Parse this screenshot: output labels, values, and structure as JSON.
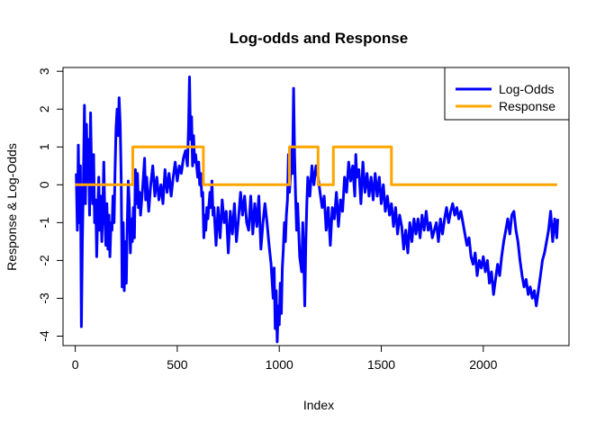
{
  "chart_data": {
    "type": "line",
    "title": "Log-odds and Response",
    "xlabel": "Index",
    "ylabel": "Response & Log-Odds",
    "xlim": [
      -60,
      2420
    ],
    "ylim": [
      -4.25,
      3.1
    ],
    "xticks": [
      0,
      500,
      1000,
      1500,
      2000
    ],
    "yticks": [
      -4,
      -3,
      -2,
      -1,
      0,
      1,
      2,
      3
    ],
    "legend_position": "top-right",
    "legend": [
      "Log-Odds",
      "Response"
    ],
    "grid": false,
    "series": [
      {
        "name": "Log-Odds",
        "color": "#0000ff",
        "points": [
          [
            5,
            0.3
          ],
          [
            10,
            -1.2
          ],
          [
            15,
            1.05
          ],
          [
            20,
            -1.0
          ],
          [
            25,
            0.5
          ],
          [
            30,
            -3.75
          ],
          [
            35,
            -1.5
          ],
          [
            40,
            0.2
          ],
          [
            45,
            2.1
          ],
          [
            50,
            -0.5
          ],
          [
            55,
            1.6
          ],
          [
            60,
            0.0
          ],
          [
            65,
            1.2
          ],
          [
            70,
            -0.8
          ],
          [
            75,
            1.9
          ],
          [
            80,
            0.3
          ],
          [
            85,
            -0.5
          ],
          [
            90,
            0.8
          ],
          [
            95,
            -1.0
          ],
          [
            100,
            -0.4
          ],
          [
            105,
            -1.9
          ],
          [
            110,
            -0.8
          ],
          [
            115,
            0.2
          ],
          [
            120,
            -1.2
          ],
          [
            125,
            -0.3
          ],
          [
            130,
            -1.5
          ],
          [
            135,
            -0.6
          ],
          [
            140,
            0.6
          ],
          [
            145,
            -0.9
          ],
          [
            150,
            -1.6
          ],
          [
            155,
            -0.5
          ],
          [
            160,
            -1.7
          ],
          [
            165,
            -0.8
          ],
          [
            170,
            -1.9
          ],
          [
            175,
            -1.0
          ],
          [
            180,
            -1.2
          ],
          [
            185,
            -0.3
          ],
          [
            190,
            -1.0
          ],
          [
            195,
            0.4
          ],
          [
            200,
            1.5
          ],
          [
            205,
            2.0
          ],
          [
            210,
            1.3
          ],
          [
            215,
            2.3
          ],
          [
            220,
            1.6
          ],
          [
            225,
            0.2
          ],
          [
            230,
            -2.7
          ],
          [
            235,
            -1.0
          ],
          [
            240,
            -2.8
          ],
          [
            245,
            -1.5
          ],
          [
            250,
            -2.6
          ],
          [
            255,
            -1.0
          ],
          [
            260,
            0.1
          ],
          [
            265,
            -0.5
          ],
          [
            270,
            -1.8
          ],
          [
            275,
            -0.9
          ],
          [
            280,
            -1.5
          ],
          [
            285,
            -0.6
          ],
          [
            290,
            -1.4
          ],
          [
            295,
            0.4
          ],
          [
            300,
            -0.5
          ],
          [
            305,
            0.3
          ],
          [
            310,
            -0.6
          ],
          [
            315,
            -0.2
          ],
          [
            320,
            -0.8
          ],
          [
            330,
            -0.1
          ],
          [
            340,
            0.7
          ],
          [
            345,
            -0.4
          ],
          [
            350,
            0.2
          ],
          [
            360,
            -0.7
          ],
          [
            370,
            0.0
          ],
          [
            380,
            0.5
          ],
          [
            390,
            -0.3
          ],
          [
            400,
            0.2
          ],
          [
            410,
            -0.4
          ],
          [
            420,
            0.0
          ],
          [
            430,
            -0.5
          ],
          [
            440,
            0.4
          ],
          [
            450,
            -0.2
          ],
          [
            460,
            0.3
          ],
          [
            470,
            -0.3
          ],
          [
            480,
            0.2
          ],
          [
            490,
            0.6
          ],
          [
            500,
            0.1
          ],
          [
            510,
            0.5
          ],
          [
            520,
            0.3
          ],
          [
            530,
            0.7
          ],
          [
            540,
            0.9
          ],
          [
            550,
            0.5
          ],
          [
            555,
            1.5
          ],
          [
            560,
            2.85
          ],
          [
            565,
            1.2
          ],
          [
            570,
            1.8
          ],
          [
            575,
            0.5
          ],
          [
            580,
            1.3
          ],
          [
            585,
            0.6
          ],
          [
            590,
            0.8
          ],
          [
            600,
            0.2
          ],
          [
            605,
            0.6
          ],
          [
            610,
            0.0
          ],
          [
            615,
            0.3
          ],
          [
            620,
            -0.3
          ],
          [
            625,
            -0.2
          ],
          [
            630,
            -1.4
          ],
          [
            635,
            -0.8
          ],
          [
            640,
            -1.2
          ],
          [
            645,
            -0.6
          ],
          [
            650,
            -0.9
          ],
          [
            660,
            -0.2
          ],
          [
            665,
            -0.6
          ],
          [
            670,
            0.1
          ],
          [
            675,
            -0.8
          ],
          [
            680,
            -0.6
          ],
          [
            690,
            -1.6
          ],
          [
            700,
            -0.6
          ],
          [
            710,
            -1.4
          ],
          [
            720,
            -0.4
          ],
          [
            730,
            -1.0
          ],
          [
            740,
            -0.7
          ],
          [
            750,
            -1.8
          ],
          [
            760,
            -0.7
          ],
          [
            770,
            -1.3
          ],
          [
            780,
            -0.5
          ],
          [
            790,
            -1.5
          ],
          [
            800,
            -0.9
          ],
          [
            810,
            -0.2
          ],
          [
            820,
            -0.8
          ],
          [
            830,
            -0.3
          ],
          [
            840,
            -1.0
          ],
          [
            850,
            -1.2
          ],
          [
            860,
            -0.3
          ],
          [
            870,
            -1.3
          ],
          [
            880,
            -0.5
          ],
          [
            890,
            -1.1
          ],
          [
            900,
            -0.3
          ],
          [
            910,
            -1.7
          ],
          [
            920,
            -1.0
          ],
          [
            930,
            -0.5
          ],
          [
            940,
            -1.0
          ],
          [
            950,
            -1.6
          ],
          [
            960,
            -2.1
          ],
          [
            970,
            -3.0
          ],
          [
            975,
            -2.2
          ],
          [
            980,
            -3.8
          ],
          [
            985,
            -2.8
          ],
          [
            990,
            -4.15
          ],
          [
            995,
            -3.2
          ],
          [
            1000,
            -3.7
          ],
          [
            1005,
            -2.6
          ],
          [
            1010,
            -3.4
          ],
          [
            1015,
            -2.2
          ],
          [
            1020,
            -1.7
          ],
          [
            1025,
            -1.0
          ],
          [
            1030,
            -1.5
          ],
          [
            1035,
            -0.8
          ],
          [
            1040,
            -0.4
          ],
          [
            1045,
            0.8
          ],
          [
            1050,
            -0.2
          ],
          [
            1055,
            0.3
          ],
          [
            1060,
            1.0
          ],
          [
            1065,
            0.3
          ],
          [
            1070,
            2.55
          ],
          [
            1075,
            0.8
          ],
          [
            1080,
            -0.3
          ],
          [
            1085,
            -1.2
          ],
          [
            1090,
            -0.5
          ],
          [
            1100,
            -1.9
          ],
          [
            1110,
            -2.3
          ],
          [
            1115,
            -1.0
          ],
          [
            1120,
            -2.0
          ],
          [
            1125,
            -3.2
          ],
          [
            1130,
            -1.5
          ],
          [
            1135,
            -0.5
          ],
          [
            1140,
            0.2
          ],
          [
            1150,
            -0.3
          ],
          [
            1160,
            0.5
          ],
          [
            1170,
            0.0
          ],
          [
            1180,
            0.5
          ],
          [
            1190,
            0.2
          ],
          [
            1200,
            -0.2
          ],
          [
            1210,
            -0.6
          ],
          [
            1220,
            -0.3
          ],
          [
            1230,
            -1.2
          ],
          [
            1240,
            -0.6
          ],
          [
            1250,
            -1.6
          ],
          [
            1260,
            -0.6
          ],
          [
            1270,
            -0.9
          ],
          [
            1280,
            -0.2
          ],
          [
            1290,
            -1.1
          ],
          [
            1300,
            -0.4
          ],
          [
            1310,
            -0.7
          ],
          [
            1320,
            0.2
          ],
          [
            1330,
            -0.2
          ],
          [
            1340,
            0.6
          ],
          [
            1350,
            0.1
          ],
          [
            1360,
            0.5
          ],
          [
            1370,
            -0.3
          ],
          [
            1375,
            0.8
          ],
          [
            1380,
            0.2
          ],
          [
            1390,
            0.4
          ],
          [
            1400,
            -0.5
          ],
          [
            1410,
            0.6
          ],
          [
            1420,
            -0.2
          ],
          [
            1430,
            0.3
          ],
          [
            1440,
            -0.3
          ],
          [
            1450,
            0.2
          ],
          [
            1460,
            -0.4
          ],
          [
            1470,
            0.3
          ],
          [
            1480,
            -0.3
          ],
          [
            1490,
            0.2
          ],
          [
            1500,
            -0.5
          ],
          [
            1510,
            0.0
          ],
          [
            1520,
            -0.7
          ],
          [
            1530,
            -0.3
          ],
          [
            1540,
            -0.8
          ],
          [
            1550,
            -0.5
          ],
          [
            1560,
            -1.1
          ],
          [
            1570,
            -0.6
          ],
          [
            1580,
            -1.3
          ],
          [
            1590,
            -0.8
          ],
          [
            1600,
            -1.1
          ],
          [
            1610,
            -1.7
          ],
          [
            1620,
            -1.2
          ],
          [
            1630,
            -1.8
          ],
          [
            1640,
            -1.0
          ],
          [
            1650,
            -1.5
          ],
          [
            1660,
            -0.9
          ],
          [
            1670,
            -1.3
          ],
          [
            1680,
            -0.9
          ],
          [
            1690,
            -1.4
          ],
          [
            1700,
            -0.8
          ],
          [
            1710,
            -1.2
          ],
          [
            1720,
            -0.7
          ],
          [
            1730,
            -1.2
          ],
          [
            1740,
            -1.0
          ],
          [
            1750,
            -1.4
          ],
          [
            1760,
            -1.2
          ],
          [
            1770,
            -1.0
          ],
          [
            1780,
            -1.5
          ],
          [
            1790,
            -0.9
          ],
          [
            1800,
            -1.3
          ],
          [
            1810,
            -0.9
          ],
          [
            1820,
            -0.6
          ],
          [
            1830,
            -1.0
          ],
          [
            1840,
            -0.7
          ],
          [
            1850,
            -0.5
          ],
          [
            1860,
            -0.8
          ],
          [
            1870,
            -0.6
          ],
          [
            1880,
            -0.9
          ],
          [
            1890,
            -0.7
          ],
          [
            1900,
            -1.0
          ],
          [
            1910,
            -1.3
          ],
          [
            1920,
            -1.6
          ],
          [
            1930,
            -1.4
          ],
          [
            1940,
            -1.9
          ],
          [
            1950,
            -2.1
          ],
          [
            1960,
            -1.8
          ],
          [
            1970,
            -2.4
          ],
          [
            1980,
            -2.0
          ],
          [
            1990,
            -2.2
          ],
          [
            2000,
            -1.9
          ],
          [
            2010,
            -2.3
          ],
          [
            2020,
            -2.0
          ],
          [
            2030,
            -2.6
          ],
          [
            2040,
            -2.3
          ],
          [
            2050,
            -2.9
          ],
          [
            2060,
            -2.5
          ],
          [
            2070,
            -2.1
          ],
          [
            2080,
            -2.4
          ],
          [
            2090,
            -1.9
          ],
          [
            2100,
            -1.5
          ],
          [
            2110,
            -1.2
          ],
          [
            2120,
            -0.9
          ],
          [
            2130,
            -1.3
          ],
          [
            2140,
            -0.8
          ],
          [
            2150,
            -0.7
          ],
          [
            2160,
            -1.2
          ],
          [
            2170,
            -1.5
          ],
          [
            2180,
            -2.0
          ],
          [
            2190,
            -2.4
          ],
          [
            2200,
            -2.7
          ],
          [
            2210,
            -2.5
          ],
          [
            2220,
            -2.9
          ],
          [
            2230,
            -2.7
          ],
          [
            2240,
            -3.0
          ],
          [
            2250,
            -2.8
          ],
          [
            2260,
            -3.2
          ],
          [
            2270,
            -2.8
          ],
          [
            2280,
            -2.4
          ],
          [
            2290,
            -2.0
          ],
          [
            2300,
            -1.8
          ],
          [
            2310,
            -1.5
          ],
          [
            2320,
            -1.2
          ],
          [
            2330,
            -0.7
          ],
          [
            2340,
            -1.5
          ],
          [
            2350,
            -0.9
          ],
          [
            2360,
            -1.4
          ],
          [
            2365,
            -0.9
          ]
        ]
      },
      {
        "name": "Response",
        "color": "#ffa500",
        "points": [
          [
            0,
            0
          ],
          [
            282,
            0
          ],
          [
            282,
            1
          ],
          [
            628,
            1
          ],
          [
            628,
            0
          ],
          [
            1050,
            0
          ],
          [
            1050,
            1
          ],
          [
            1190,
            1
          ],
          [
            1190,
            0
          ],
          [
            1265,
            0
          ],
          [
            1265,
            1
          ],
          [
            1550,
            1
          ],
          [
            1550,
            0
          ],
          [
            2362,
            0
          ]
        ]
      }
    ]
  }
}
